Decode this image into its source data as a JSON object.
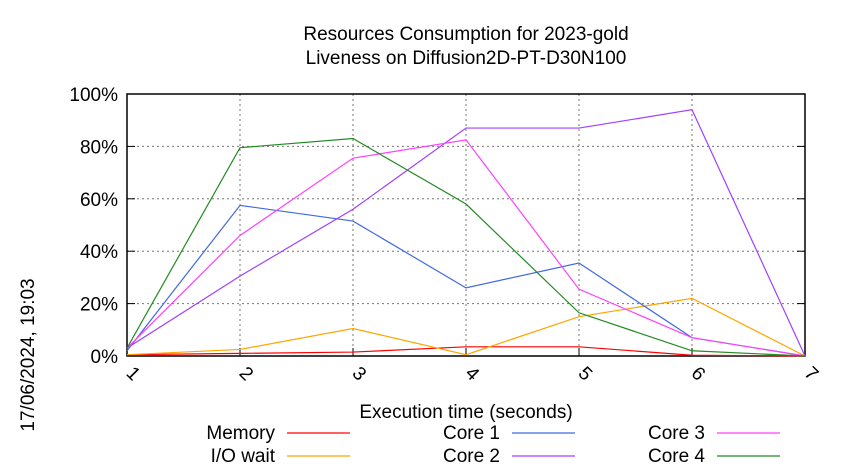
{
  "chart_data": {
    "type": "line",
    "title": [
      "Resources Consumption for 2023-gold",
      "Liveness on Diffusion2D-PT-D30N100"
    ],
    "xlabel": "Execution time (seconds)",
    "ylabel": "",
    "side_label": "17/06/2024, 19:03",
    "x": [
      1,
      2,
      3,
      4,
      5,
      6,
      7
    ],
    "xlim": [
      1,
      7
    ],
    "ylim": [
      0,
      100
    ],
    "yticks": [
      0,
      20,
      40,
      60,
      80,
      100
    ],
    "ytick_labels": [
      "0%",
      "20%",
      "40%",
      "60%",
      "80%",
      "100%"
    ],
    "xtick_labels": [
      "1",
      "2",
      "3",
      "4",
      "5",
      "6",
      "7"
    ],
    "grid": true,
    "legend_position": "bottom",
    "series": [
      {
        "name": "Memory",
        "color": "#ff0000",
        "values": [
          0.5,
          1,
          1.5,
          3.5,
          3.5,
          0.3,
          0
        ]
      },
      {
        "name": "I/O wait",
        "color": "#ffa500",
        "values": [
          0.5,
          2.5,
          10.5,
          0.5,
          15,
          22,
          0
        ]
      },
      {
        "name": "Core 1",
        "color": "#4169e1",
        "values": [
          2,
          57.5,
          51.5,
          26,
          35.5,
          7,
          0
        ]
      },
      {
        "name": "Core 2",
        "color": "#a040ff",
        "values": [
          3,
          30.5,
          56,
          87,
          87,
          94,
          0
        ]
      },
      {
        "name": "Core 3",
        "color": "#ff40ff",
        "values": [
          3,
          46,
          75.5,
          82.5,
          25.5,
          7,
          0
        ]
      },
      {
        "name": "Core 4",
        "color": "#228b22",
        "values": [
          3,
          79.5,
          83,
          58,
          16.5,
          2,
          0
        ]
      }
    ]
  }
}
